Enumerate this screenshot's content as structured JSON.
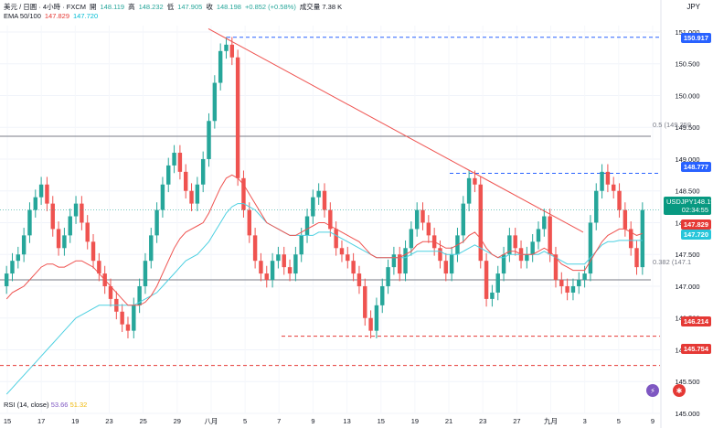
{
  "header": {
    "title": "美元 / 日圓 · 4小時 · FXCM",
    "open_label": "開",
    "open": "148.119",
    "high_label": "高",
    "high": "148.232",
    "low_label": "低",
    "low": "147.905",
    "close_label": "收",
    "close": "148.198",
    "change": "+0.852 (+0.58%)",
    "volume": "成交量 7.38 K",
    "ema_label": "EMA 50/100",
    "ema50": "147.829",
    "ema100": "147.720",
    "currency": "JPY"
  },
  "rsi": {
    "label": "RSI (14, close)",
    "v1": "53.66",
    "v2": "51.32"
  },
  "price_axis": [
    "151.000",
    "150.500",
    "150.000",
    "149.500",
    "149.000",
    "148.500",
    "148.000",
    "147.500",
    "147.000",
    "146.500",
    "146.000",
    "145.500",
    "145.000"
  ],
  "price_tags": {
    "t1": "150.917",
    "t2": "148.777",
    "symbol": "USDJPY",
    "last": "148.198",
    "countdown": "02:34:55",
    "ema50": "147.829",
    "ema100": "147.720",
    "t3": "146.214",
    "t4": "145.754"
  },
  "fib": {
    "level_05": "0.5 (149.359",
    "level_0382": "0.382 (147.1"
  },
  "x_axis": [
    "15",
    "17",
    "19",
    "23",
    "25",
    "29",
    "八月",
    "5",
    "7",
    "9",
    "13",
    "15",
    "19",
    "21",
    "23",
    "27",
    "九月",
    "3",
    "5",
    "9"
  ],
  "colors": {
    "up": "#26a69a",
    "down": "#ef5350",
    "ema50": "#ef5350",
    "ema100": "#4dd0e1",
    "trend": "#ef5350",
    "dash_blue": "#2962ff",
    "dash_red": "#e53935"
  },
  "chart_data": {
    "type": "candlestick",
    "ylim": [
      145.0,
      151.1
    ],
    "values": [
      147.2,
      147.4,
      147.5,
      147.8,
      148.2,
      148.4,
      148.6,
      148.3,
      147.9,
      147.6,
      147.8,
      148.1,
      148.3,
      148.0,
      147.7,
      147.4,
      147.2,
      147.0,
      146.8,
      146.6,
      146.4,
      146.3,
      146.7,
      147.0,
      147.4,
      147.8,
      148.2,
      148.6,
      148.9,
      149.1,
      148.8,
      148.5,
      148.3,
      148.6,
      149.0,
      149.6,
      150.2,
      150.7,
      150.8,
      150.6,
      148.7,
      148.2,
      147.8,
      147.4,
      147.2,
      147.1,
      147.4,
      147.5,
      147.3,
      147.2,
      147.5,
      147.8,
      148.1,
      148.4,
      148.5,
      148.2,
      147.9,
      147.6,
      147.5,
      147.4,
      147.2,
      147.0,
      146.5,
      146.3,
      146.7,
      147.0,
      147.3,
      147.5,
      147.2,
      147.6,
      147.9,
      148.2,
      148.0,
      147.8,
      147.6,
      147.4,
      147.2,
      147.5,
      147.8,
      148.3,
      148.7,
      148.6,
      147.4,
      146.8,
      146.9,
      147.2,
      147.5,
      147.8,
      147.6,
      147.4,
      147.5,
      147.7,
      147.9,
      148.1,
      147.5,
      147.1,
      147.0,
      146.9,
      147.0,
      147.1,
      147.2,
      148.0,
      148.5,
      148.8,
      148.6,
      148.5,
      148.2,
      147.9,
      147.6,
      147.3,
      148.2
    ],
    "ema50": [
      146.8,
      146.9,
      146.95,
      147.0,
      147.1,
      147.2,
      147.3,
      147.35,
      147.35,
      147.3,
      147.3,
      147.35,
      147.4,
      147.4,
      147.35,
      147.3,
      147.2,
      147.1,
      147.0,
      146.9,
      146.8,
      146.7,
      146.7,
      146.7,
      146.75,
      146.85,
      147.0,
      147.2,
      147.4,
      147.6,
      147.75,
      147.85,
      147.9,
      147.95,
      148.0,
      148.15,
      148.35,
      148.55,
      148.7,
      148.75,
      148.7,
      148.6,
      148.45,
      148.3,
      148.15,
      148.0,
      147.95,
      147.9,
      147.85,
      147.8,
      147.8,
      147.85,
      147.9,
      147.95,
      148.0,
      148.0,
      147.95,
      147.9,
      147.85,
      147.8,
      147.75,
      147.7,
      147.6,
      147.5,
      147.45,
      147.45,
      147.45,
      147.45,
      147.45,
      147.5,
      147.55,
      147.65,
      147.7,
      147.7,
      147.7,
      147.65,
      147.6,
      147.6,
      147.65,
      147.7,
      147.8,
      147.85,
      147.75,
      147.6,
      147.5,
      147.45,
      147.5,
      147.55,
      147.55,
      147.5,
      147.5,
      147.5,
      147.55,
      147.6,
      147.55,
      147.45,
      147.35,
      147.3,
      147.25,
      147.25,
      147.25,
      147.4,
      147.55,
      147.7,
      147.8,
      147.85,
      147.9,
      147.9,
      147.85,
      147.8,
      147.83
    ],
    "ema100": [
      145.3,
      145.4,
      145.5,
      145.6,
      145.7,
      145.8,
      145.9,
      146.0,
      146.1,
      146.2,
      146.3,
      146.4,
      146.5,
      146.55,
      146.6,
      146.65,
      146.7,
      146.7,
      146.7,
      146.7,
      146.7,
      146.7,
      146.7,
      146.75,
      146.8,
      146.85,
      146.9,
      147.0,
      147.1,
      147.2,
      147.3,
      147.4,
      147.45,
      147.5,
      147.6,
      147.7,
      147.85,
      148.0,
      148.15,
      148.25,
      148.3,
      148.3,
      148.25,
      148.2,
      148.1,
      148.0,
      147.95,
      147.9,
      147.85,
      147.8,
      147.8,
      147.8,
      147.8,
      147.8,
      147.85,
      147.85,
      147.85,
      147.8,
      147.75,
      147.7,
      147.65,
      147.6,
      147.55,
      147.5,
      147.45,
      147.45,
      147.45,
      147.45,
      147.45,
      147.45,
      147.5,
      147.55,
      147.55,
      147.55,
      147.55,
      147.55,
      147.5,
      147.5,
      147.5,
      147.55,
      147.6,
      147.65,
      147.6,
      147.55,
      147.5,
      147.45,
      147.45,
      147.5,
      147.5,
      147.5,
      147.5,
      147.5,
      147.5,
      147.55,
      147.5,
      147.45,
      147.4,
      147.35,
      147.35,
      147.35,
      147.35,
      147.45,
      147.55,
      147.65,
      147.7,
      147.7,
      147.72,
      147.72,
      147.72,
      147.72,
      147.72
    ],
    "hlines": [
      150.917,
      148.777,
      146.214,
      145.754
    ],
    "fib_levels": [
      149.359,
      147.1
    ]
  }
}
